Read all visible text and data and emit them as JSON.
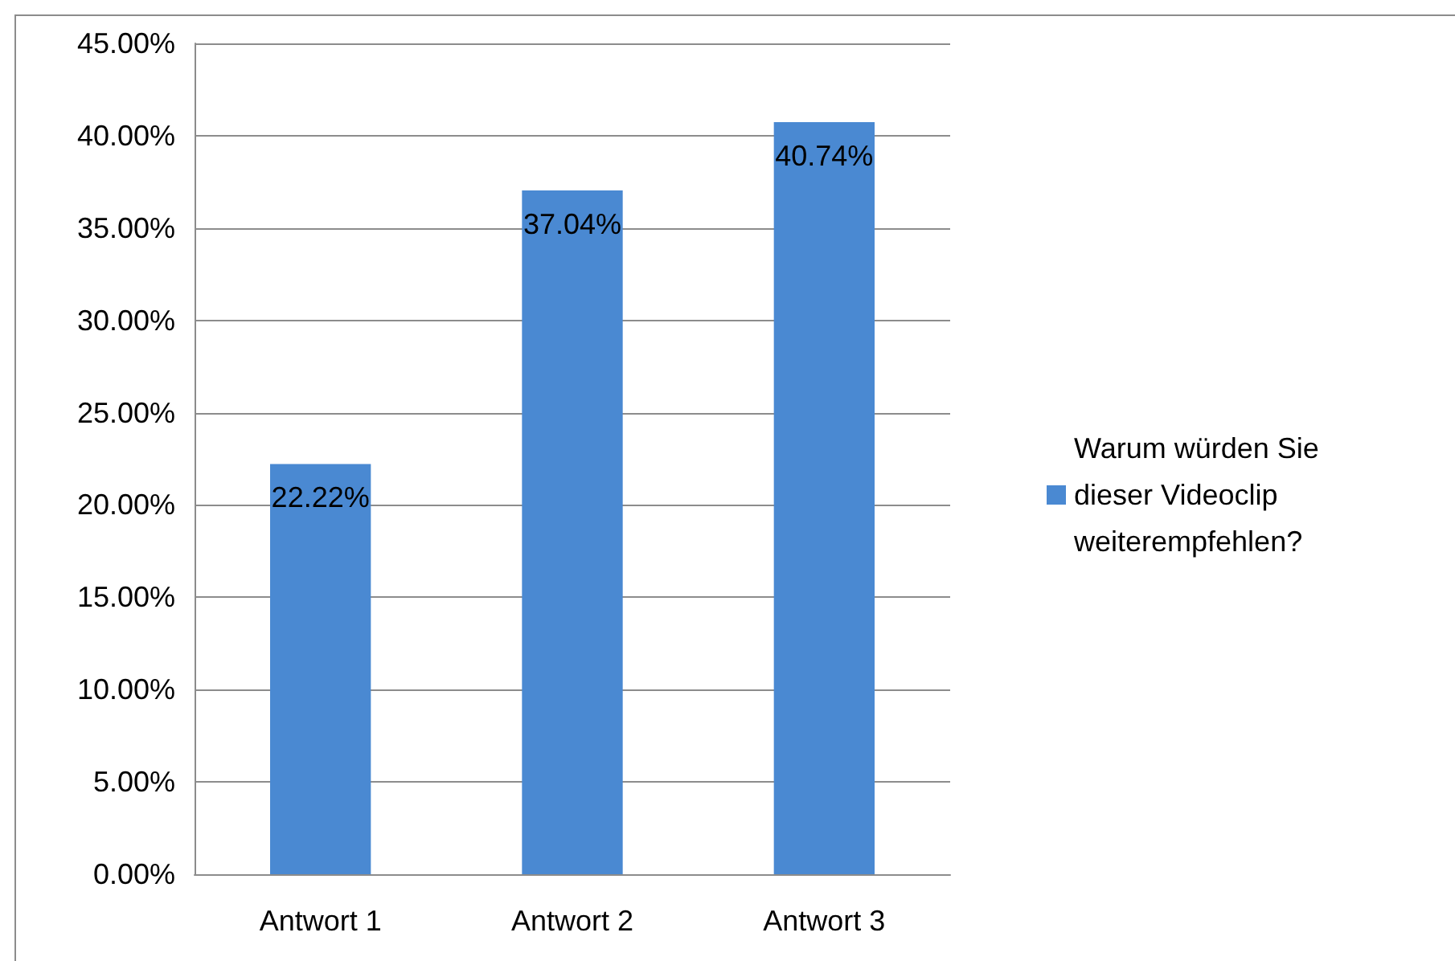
{
  "chart_data": {
    "type": "bar",
    "categories": [
      "Antwort 1",
      "Antwort 2",
      "Antwort 3"
    ],
    "series": [
      {
        "name": "Warum würden Sie dieser Videoclip weiterempfehlen?",
        "color": "#4a89d2",
        "values": [
          22.22,
          37.04,
          40.74
        ],
        "value_labels": [
          "22.22%",
          "37.04%",
          "40.74%"
        ]
      }
    ],
    "ylim": [
      0,
      45
    ],
    "yticks": [
      {
        "value": 0,
        "label": "0.00%"
      },
      {
        "value": 5,
        "label": "5.00%"
      },
      {
        "value": 10,
        "label": "10.00%"
      },
      {
        "value": 15,
        "label": "15.00%"
      },
      {
        "value": 20,
        "label": "20.00%"
      },
      {
        "value": 25,
        "label": "25.00%"
      },
      {
        "value": 30,
        "label": "30.00%"
      },
      {
        "value": 35,
        "label": "35.00%"
      },
      {
        "value": 40,
        "label": "40.00%"
      },
      {
        "value": 45,
        "label": "45.00%"
      }
    ],
    "grid": "y",
    "legend": "right"
  }
}
